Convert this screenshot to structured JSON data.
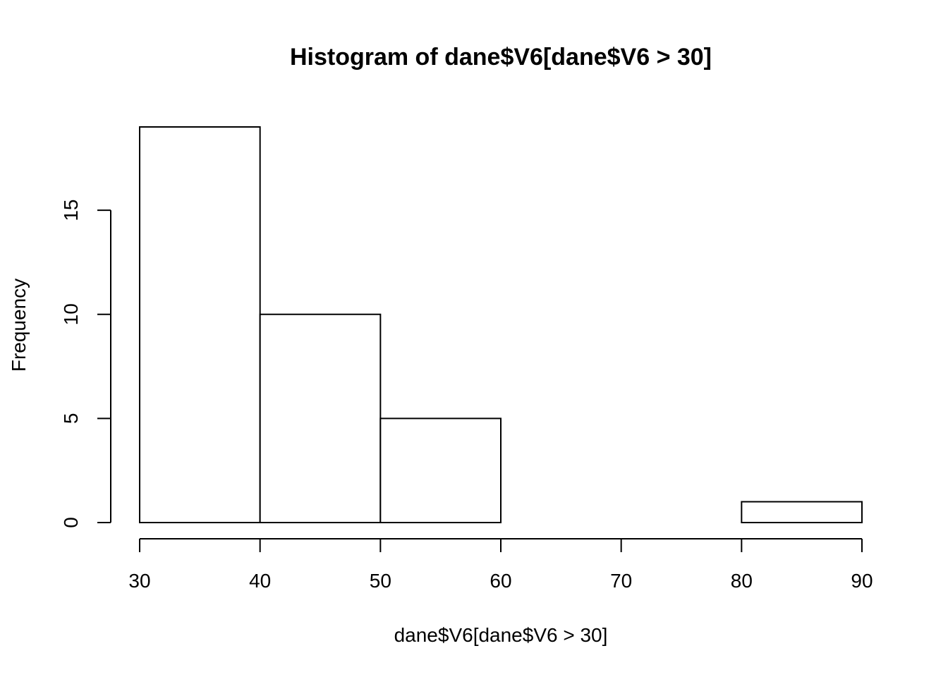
{
  "chart_data": {
    "type": "bar",
    "title": "Histogram of dane$V6[dane$V6 > 30]",
    "xlabel": "dane$V6[dane$V6 > 30]",
    "ylabel": "Frequency",
    "bins": [
      {
        "start": 30,
        "end": 40,
        "count": 19
      },
      {
        "start": 40,
        "end": 50,
        "count": 10
      },
      {
        "start": 50,
        "end": 60,
        "count": 5
      },
      {
        "start": 60,
        "end": 70,
        "count": 0
      },
      {
        "start": 70,
        "end": 80,
        "count": 0
      },
      {
        "start": 80,
        "end": 90,
        "count": 1
      }
    ],
    "xlim": [
      30,
      90
    ],
    "ylim": [
      0,
      19
    ],
    "x_ticks": [
      "30",
      "40",
      "50",
      "60",
      "70",
      "80",
      "90"
    ],
    "y_ticks": [
      "0",
      "5",
      "10",
      "15"
    ],
    "grid": false,
    "legend": "none"
  }
}
